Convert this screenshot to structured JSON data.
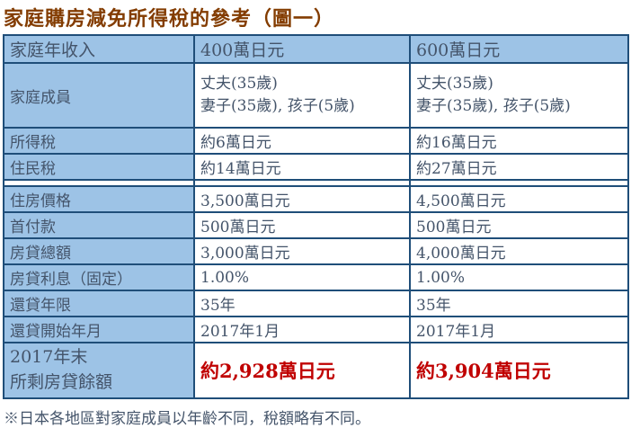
{
  "colors": {
    "title": "#833C00",
    "accent_brown": "#833C00",
    "cell_background": "#9DC3E6",
    "border": "#1F4E79",
    "text": "#44546A",
    "red_value": "#E00000",
    "dark_red_value": "#C00000"
  },
  "page": {
    "title": "家庭購房減免所得稅的參考（圖一）",
    "footnote": "※日本各地區對家庭成員以年齡不同，稅額略有不同。"
  },
  "table": {
    "header": {
      "label": "家庭年收入",
      "col1": "400萬日元",
      "col2": "600萬日元"
    },
    "rows": [
      {
        "label": "家庭成員",
        "values": [
          "丈夫(35歲)\n妻子(35歲), 孩子(5歲)",
          "丈夫(35歲)\n妻子(35歲), 孩子(5歲)"
        ]
      },
      {
        "label": "所得稅",
        "values": [
          "約6萬日元",
          "約16萬日元"
        ]
      },
      {
        "label": "住民稅",
        "values": [
          "約14萬日元",
          "約27萬日元"
        ]
      },
      {
        "label": "",
        "values": [
          "",
          ""
        ]
      },
      {
        "label": "住房價格",
        "values": [
          "3,500萬日元",
          "4,500萬日元"
        ]
      },
      {
        "label": "首付款",
        "values": [
          "500萬日元",
          "500萬日元"
        ]
      },
      {
        "label": "房貸總額",
        "values": [
          "3,000萬日元",
          "4,000萬日元"
        ]
      },
      {
        "label": "房貸利息（固定）",
        "values": [
          "1.00%",
          "1.00%"
        ]
      },
      {
        "label": "還貸年限",
        "values": [
          "35年",
          "35年"
        ]
      },
      {
        "label": "還貸開始年月",
        "values": [
          "2017年1月",
          "2017年1月"
        ]
      },
      {
        "label": "2017年末\n所剩房貸餘額",
        "values": [
          "約2,928萬日元",
          "約3,904萬日元"
        ]
      }
    ]
  }
}
